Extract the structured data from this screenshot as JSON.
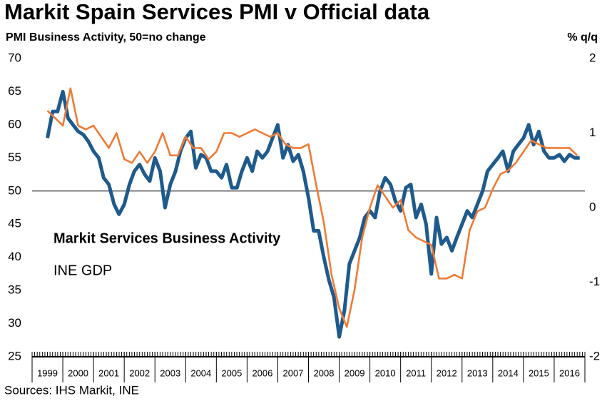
{
  "chart_data": {
    "type": "line",
    "title": "Markit Spain Services PMI v Official data",
    "ylabel": "PMI Business Activity, 50=no change",
    "y2label": "% q/q",
    "source": "Sources: IHS Markit, INE",
    "xlim": [
      1999,
      2017
    ],
    "xticks": [
      1999,
      2000,
      2001,
      2002,
      2003,
      2004,
      2005,
      2006,
      2007,
      2008,
      2009,
      2010,
      2011,
      2012,
      2013,
      2014,
      2015,
      2016
    ],
    "ylim": [
      25,
      70
    ],
    "yticks": [
      25,
      30,
      35,
      40,
      45,
      50,
      55,
      60,
      65,
      70
    ],
    "y2lim": [
      -2,
      2
    ],
    "y2ticks": [
      -2,
      -1,
      0,
      1,
      2
    ],
    "reference_line": 50,
    "series": [
      {
        "name": "Markit Services Business Activity",
        "color": "#1f5a8c",
        "axis": "y",
        "x": [
          1999.5,
          1999.67,
          1999.83,
          2000,
          2000.17,
          2000.33,
          2000.5,
          2000.67,
          2000.83,
          2001,
          2001.17,
          2001.33,
          2001.5,
          2001.67,
          2001.83,
          2002,
          2002.17,
          2002.33,
          2002.5,
          2002.67,
          2002.83,
          2003,
          2003.17,
          2003.33,
          2003.5,
          2003.67,
          2003.83,
          2004,
          2004.17,
          2004.33,
          2004.5,
          2004.67,
          2004.83,
          2005,
          2005.17,
          2005.33,
          2005.5,
          2005.67,
          2005.83,
          2006,
          2006.17,
          2006.33,
          2006.5,
          2006.67,
          2006.83,
          2007,
          2007.17,
          2007.33,
          2007.5,
          2007.67,
          2007.83,
          2008,
          2008.17,
          2008.33,
          2008.5,
          2008.67,
          2008.83,
          2009,
          2009.17,
          2009.33,
          2009.5,
          2009.67,
          2009.83,
          2010,
          2010.17,
          2010.33,
          2010.5,
          2010.67,
          2010.83,
          2011,
          2011.17,
          2011.33,
          2011.5,
          2011.67,
          2011.83,
          2012,
          2012.17,
          2012.33,
          2012.5,
          2012.67,
          2012.83,
          2013,
          2013.17,
          2013.33,
          2013.5,
          2013.67,
          2013.83,
          2014,
          2014.17,
          2014.33,
          2014.5,
          2014.67,
          2014.83,
          2015,
          2015.17,
          2015.33,
          2015.5,
          2015.67,
          2015.83,
          2016,
          2016.17,
          2016.33,
          2016.5,
          2016.67,
          2016.83
        ],
        "values": [
          58,
          62,
          62,
          65,
          61,
          60,
          59,
          58.5,
          57.5,
          56,
          55,
          52,
          51,
          48,
          46.5,
          48,
          51,
          53,
          54,
          52.5,
          51.5,
          55,
          53,
          47.5,
          51,
          53,
          56,
          58,
          59,
          53.5,
          55.5,
          55,
          53,
          53,
          52,
          54,
          50.5,
          50.5,
          53,
          55,
          53,
          56,
          55,
          56,
          58,
          60,
          55,
          57,
          54.5,
          55.5,
          53,
          49,
          44,
          44,
          40,
          36.5,
          34,
          28,
          32,
          39,
          41,
          43,
          46,
          47,
          46,
          50,
          52,
          51,
          48.5,
          47,
          50.5,
          51,
          46,
          48,
          45,
          37.5,
          46,
          42,
          43,
          41,
          43,
          45,
          47,
          46,
          48,
          50,
          53,
          54,
          55,
          56,
          53,
          56,
          57,
          58,
          60,
          57,
          59,
          56,
          55,
          55,
          55.5,
          54.5,
          55.5,
          55,
          55
        ]
      },
      {
        "name": "INE GDP",
        "color": "#ef7b35",
        "axis": "y2",
        "x": [
          1999.5,
          1999.75,
          2000,
          2000.25,
          2000.5,
          2000.75,
          2001,
          2001.25,
          2001.5,
          2001.75,
          2002,
          2002.25,
          2002.5,
          2002.75,
          2003,
          2003.25,
          2003.5,
          2003.75,
          2004,
          2004.25,
          2004.5,
          2004.75,
          2005,
          2005.25,
          2005.5,
          2005.75,
          2006,
          2006.25,
          2006.5,
          2006.75,
          2007,
          2007.25,
          2007.5,
          2007.75,
          2008,
          2008.25,
          2008.5,
          2008.75,
          2009,
          2009.25,
          2009.5,
          2009.75,
          2010,
          2010.25,
          2010.5,
          2010.75,
          2011,
          2011.25,
          2011.5,
          2011.75,
          2012,
          2012.25,
          2012.5,
          2012.75,
          2013,
          2013.25,
          2013.5,
          2013.75,
          2014,
          2014.25,
          2014.5,
          2014.75,
          2015,
          2015.25,
          2015.5,
          2015.75,
          2016,
          2016.25,
          2016.5,
          2016.75
        ],
        "values": [
          1.3,
          1.2,
          1.1,
          1.6,
          1.1,
          1.05,
          1.1,
          0.95,
          0.8,
          1.0,
          0.65,
          0.6,
          0.75,
          0.6,
          0.75,
          1.0,
          0.7,
          0.7,
          0.95,
          0.8,
          0.8,
          0.65,
          0.75,
          1.0,
          1.0,
          0.95,
          1.0,
          1.05,
          1.0,
          0.95,
          1.0,
          0.85,
          0.8,
          0.8,
          0.85,
          0.3,
          -0.2,
          -0.9,
          -1.35,
          -1.6,
          -1.1,
          -0.4,
          0.0,
          0.3,
          0.15,
          0.0,
          0.1,
          -0.3,
          -0.4,
          -0.45,
          -0.5,
          -0.95,
          -0.95,
          -0.9,
          -0.95,
          -0.3,
          -0.05,
          0.0,
          0.25,
          0.45,
          0.5,
          0.6,
          0.75,
          0.9,
          0.85,
          0.8,
          0.8,
          0.8,
          0.8,
          0.7
        ]
      }
    ]
  }
}
